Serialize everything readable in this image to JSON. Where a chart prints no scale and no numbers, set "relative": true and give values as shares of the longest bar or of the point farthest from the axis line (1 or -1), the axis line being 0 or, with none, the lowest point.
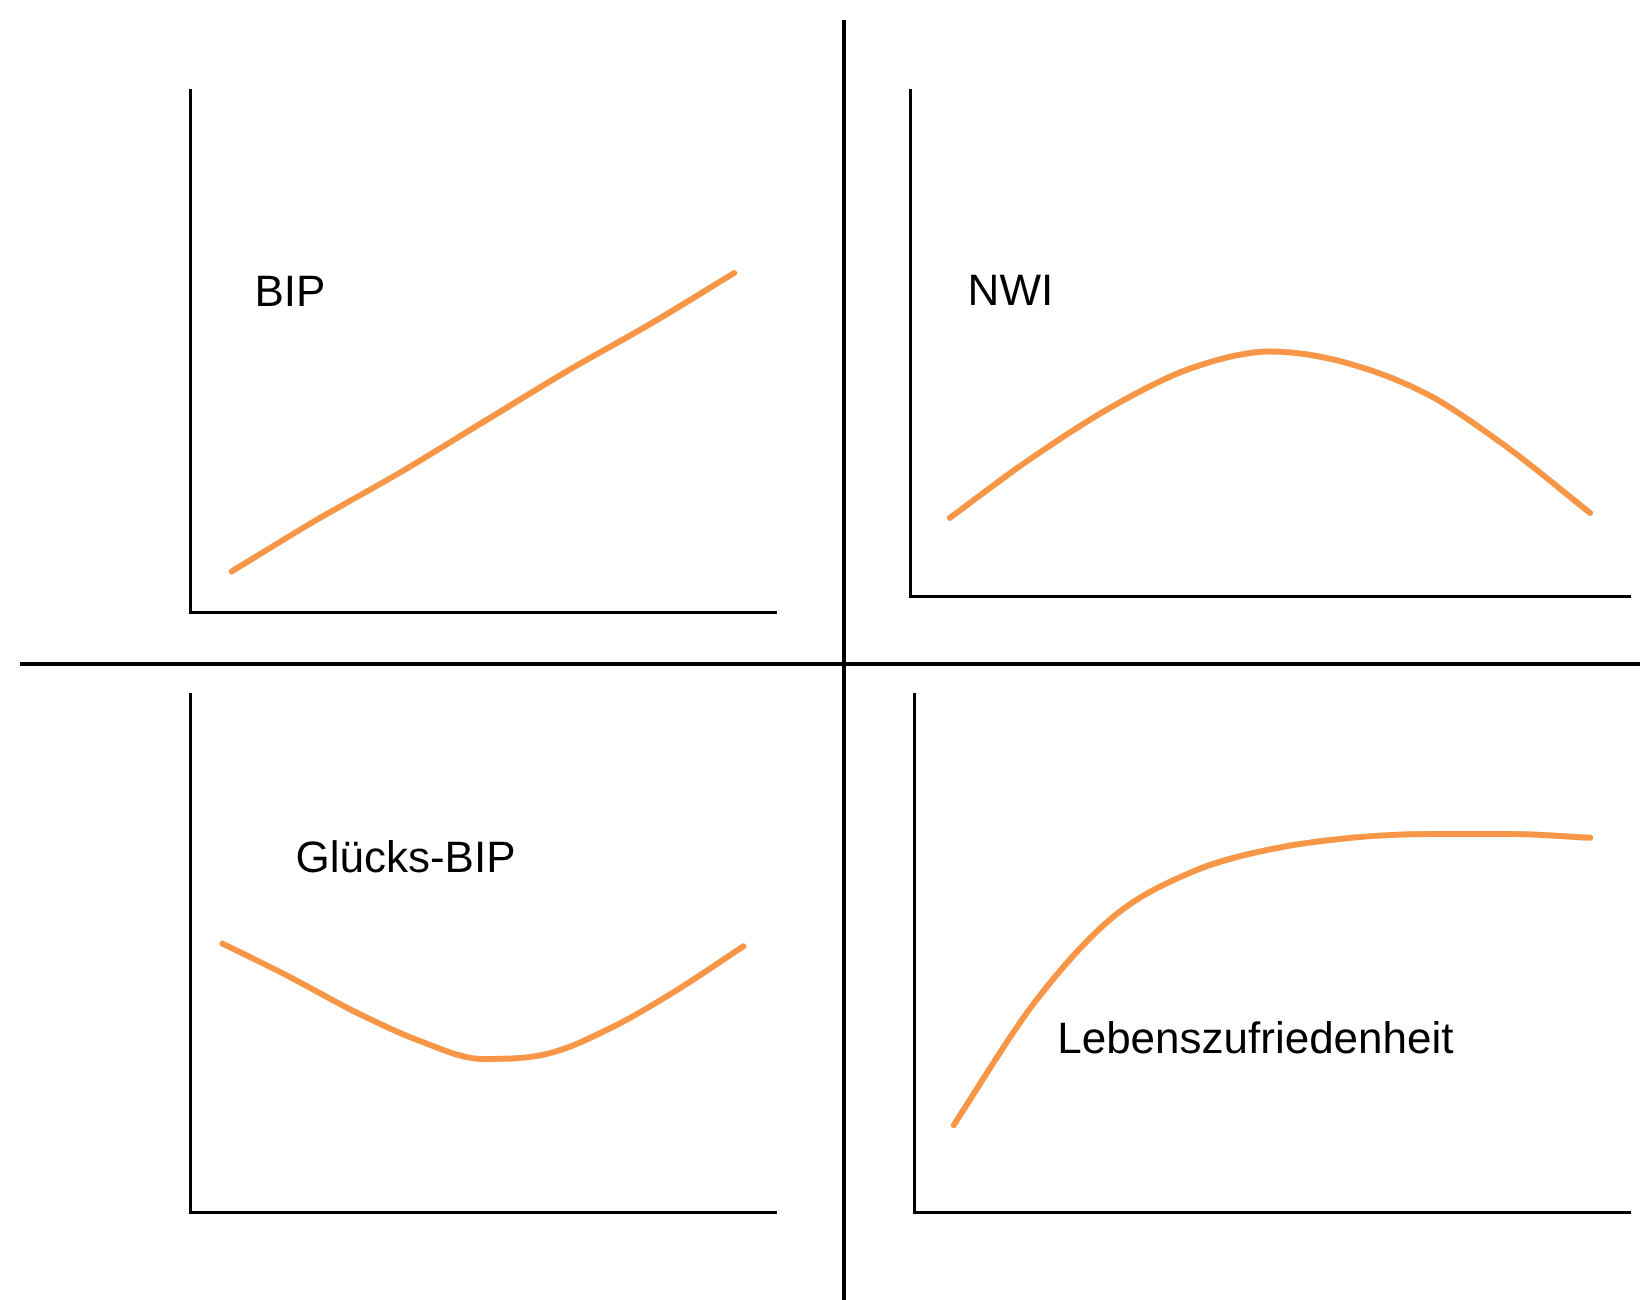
{
  "chart_data": [
    {
      "type": "line",
      "relative": true,
      "tick_labels": false,
      "categories": [
        null,
        null,
        null,
        null,
        null,
        null,
        null
      ],
      "series": [
        {
          "name": "BIP",
          "color": "#f79646",
          "values": [
            0.12,
            0.27,
            0.41,
            0.56,
            0.71,
            0.85,
            1
          ]
        }
      ]
    },
    {
      "type": "line",
      "relative": true,
      "tick_labels": false,
      "categories": [
        null,
        null,
        null,
        null,
        null,
        null,
        null,
        null,
        null
      ],
      "series": [
        {
          "name": "NWI",
          "color": "#f79646",
          "values": [
            0.32,
            0.56,
            0.77,
            0.93,
            1,
            0.95,
            0.82,
            0.6,
            0.34
          ]
        }
      ]
    },
    {
      "type": "line",
      "relative": true,
      "tick_labels": false,
      "categories": [
        null,
        null,
        null,
        null,
        null,
        null,
        null,
        null,
        null
      ],
      "series": [
        {
          "name": "Glücks-BIP",
          "color": "#f79646",
          "values": [
            1,
            0.88,
            0.75,
            0.64,
            0.57,
            0.59,
            0.69,
            0.83,
            0.99
          ]
        }
      ]
    },
    {
      "type": "line",
      "relative": true,
      "tick_labels": false,
      "categories": [
        null,
        null,
        null,
        null,
        null,
        null,
        null,
        null,
        null
      ],
      "series": [
        {
          "name": "Lebenszufriedenheit",
          "color": "#f79646",
          "values": [
            0.23,
            0.55,
            0.78,
            0.9,
            0.96,
            0.99,
            1,
            1,
            0.99
          ]
        }
      ]
    }
  ]
}
